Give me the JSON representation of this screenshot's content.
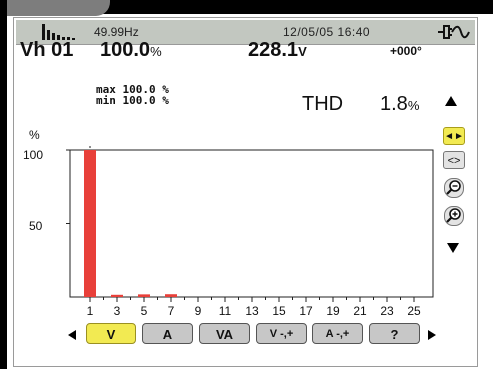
{
  "status": {
    "frequency": "49.99Hz",
    "datetime": "12/05/05 16:40"
  },
  "header": {
    "harmonic": "Vh 01",
    "percent_value": "100.0",
    "percent_unit": "%",
    "voltage_value": "228.1",
    "voltage_unit": "V",
    "phase": "+000°",
    "max_line": "max 100.0 %",
    "min_line": "min 100.0 %",
    "thd_label": "THD",
    "thd_value": "1.8",
    "thd_unit": "%"
  },
  "chart_data": {
    "type": "bar",
    "ylabel": "%",
    "ylim": [
      0,
      100
    ],
    "yticks": [
      "100",
      "50"
    ],
    "xticks": [
      "1",
      "3",
      "5",
      "7",
      "9",
      "11",
      "13",
      "15",
      "17",
      "19",
      "21",
      "23",
      "25"
    ],
    "harmonics": [
      1,
      3,
      5,
      7
    ],
    "values": [
      100,
      1.5,
      1.8,
      1.9
    ],
    "bar_color": "#e8403a",
    "grid": false
  },
  "side_buttons": {
    "scroll": "◄►",
    "expand": "<>"
  },
  "tabs": [
    {
      "label": "V",
      "active": true
    },
    {
      "label": "A",
      "active": false
    },
    {
      "label": "VA",
      "active": false
    },
    {
      "label": "V -,+",
      "active": false
    },
    {
      "label": "A -,+",
      "active": false
    },
    {
      "label": "?",
      "active": false
    }
  ],
  "colors": {
    "accent": "#f2ea52",
    "statusbar": "#c2c7c0",
    "bar": "#e8403a"
  }
}
